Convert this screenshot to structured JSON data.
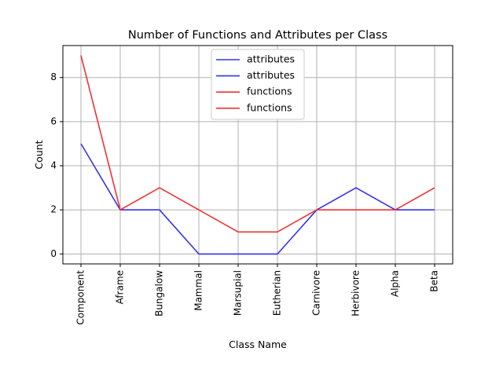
{
  "chart_data": {
    "type": "line",
    "title": "Number of Functions and Attributes per Class",
    "xlabel": "Class Name",
    "ylabel": "Count",
    "categories": [
      "Component",
      "Aframe",
      "Bungalow",
      "Mammal",
      "Marsupial",
      "Eutherian",
      "Carnivore",
      "Herbivore",
      "Alpha",
      "Beta"
    ],
    "yticks": [
      "0",
      "2",
      "4",
      "6",
      "8"
    ],
    "ylim": [
      -0.45,
      9.45
    ],
    "grid": true,
    "legend_position": "top-center",
    "legend": [
      "attributes",
      "attributes",
      "functions",
      "functions"
    ],
    "series": [
      {
        "name": "attributes",
        "color": "#3333ee",
        "values": [
          5,
          2,
          2,
          0,
          0,
          0,
          2,
          3,
          2,
          2
        ]
      },
      {
        "name": "functions",
        "color": "#ee3333",
        "values": [
          9,
          2,
          3,
          2,
          1,
          1,
          2,
          2,
          2,
          3
        ]
      }
    ],
    "legend_colors": [
      "#3333ee",
      "#3333ee",
      "#ee3333",
      "#ee3333"
    ]
  }
}
